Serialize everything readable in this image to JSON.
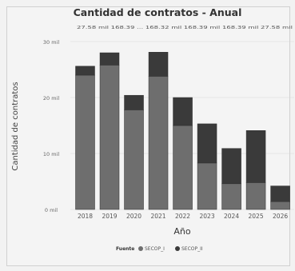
{
  "chart_data": {
    "type": "bar",
    "stacked": true,
    "title": "Cantidad de contratos - Anual",
    "top_labels": "27.58 mil 168.39 ... 168.32 mil 168.39 mil 168.39 mil  27.58 mil",
    "xlabel": "Año",
    "ylabel": "Cantidad de contratos",
    "categories": [
      "2018",
      "2019",
      "2020",
      "2021",
      "2022",
      "2023",
      "2024",
      "2025",
      "2026"
    ],
    "ylim": [
      0,
      32000
    ],
    "yticks": [
      0,
      10000,
      20000,
      30000
    ],
    "ytick_labels": [
      "0 mil",
      "10 mil",
      "20 mil",
      "30 mil"
    ],
    "series": [
      {
        "name": "SECOP_I",
        "color": "#6e6e6e",
        "values": [
          24000,
          25800,
          17800,
          23800,
          15000,
          8300,
          4600,
          4800,
          1400
        ]
      },
      {
        "name": "SECOP_II",
        "color": "#3a3a3a",
        "values": [
          1600,
          2200,
          2600,
          4300,
          5000,
          7000,
          6300,
          9300,
          2800
        ]
      }
    ],
    "legend": {
      "title": "Fuente",
      "placement": "bottom"
    },
    "grid": true
  }
}
